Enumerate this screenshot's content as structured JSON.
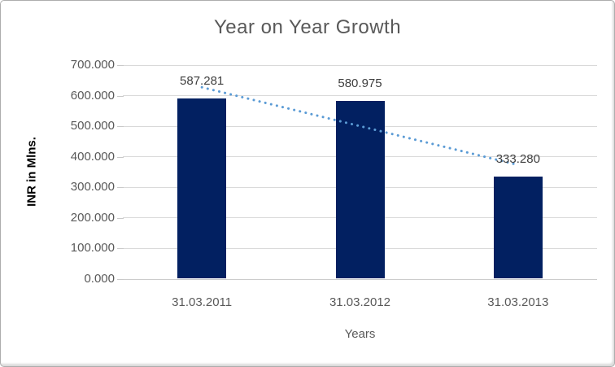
{
  "chart_data": {
    "type": "bar",
    "title": "Year on Year Growth",
    "xlabel": "Years",
    "ylabel": "INR in Mlns.",
    "categories": [
      "31.03.2011",
      "31.03.2012",
      "31.03.2013"
    ],
    "values": [
      587.281,
      580.975,
      333.28
    ],
    "data_labels": [
      "587.281",
      "580.975",
      "333.280"
    ],
    "ylim": [
      0,
      700
    ],
    "ytick_step": 100,
    "ytick_labels": [
      "0.000",
      "100.000",
      "200.000",
      "300.000",
      "400.000",
      "500.000",
      "600.000",
      "700.000"
    ],
    "grid": true,
    "legend": "none",
    "bar_color": "#022061",
    "trendline": {
      "type": "linear",
      "style": "dotted",
      "color": "#5b9bd5",
      "start_value": 627.5,
      "end_value": 373.5
    }
  }
}
